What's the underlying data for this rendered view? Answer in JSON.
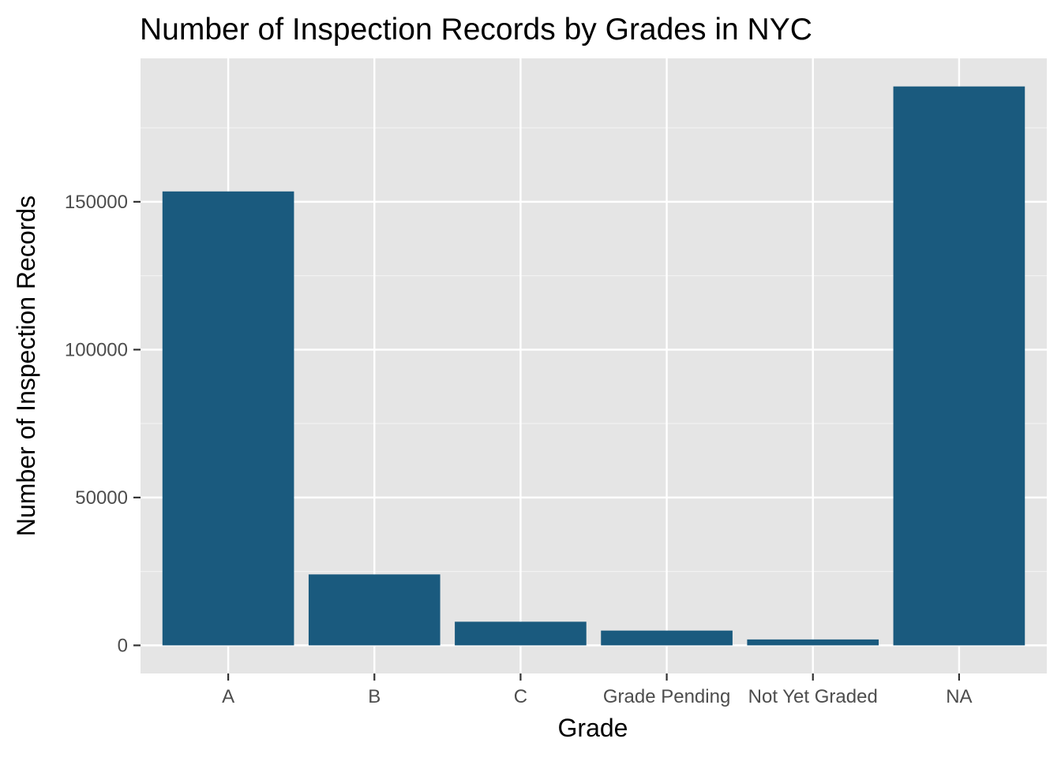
{
  "chart_data": {
    "type": "bar",
    "title": "Number of Inspection Records by Grades in NYC",
    "xlabel": "Grade",
    "ylabel": "Number of Inspection Records",
    "categories": [
      "A",
      "B",
      "C",
      "Grade Pending",
      "Not Yet Graded",
      "NA"
    ],
    "values": [
      153500,
      24000,
      8000,
      5000,
      2000,
      189000
    ],
    "ylim": [
      -9500,
      198500
    ],
    "yticks": [
      0,
      50000,
      100000,
      150000
    ],
    "ytick_labels": [
      "0",
      "50000",
      "100000",
      "150000"
    ],
    "grid": true,
    "legend": "none",
    "colors": {
      "bar": "#1a5a7e",
      "panel_background": "#e5e5e5",
      "grid_major": "#ffffff",
      "grid_minor": "#f2f2f2",
      "axis_text": "#4d4d4d",
      "tick": "#333333"
    }
  }
}
